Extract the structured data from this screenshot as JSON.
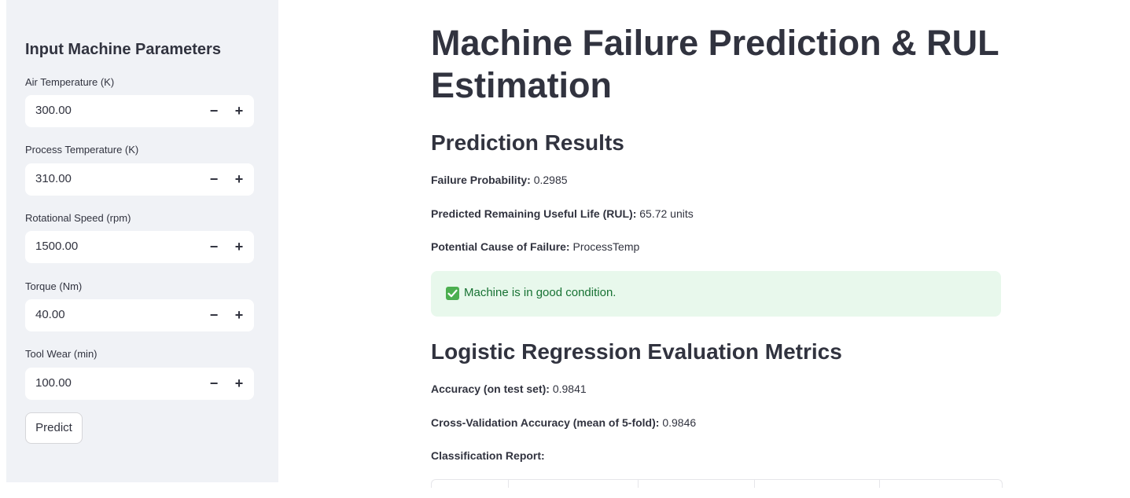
{
  "sidebar": {
    "header": "Input Machine Parameters",
    "fields": [
      {
        "label": "Air Temperature (K)",
        "value": "300.00"
      },
      {
        "label": "Process Temperature (K)",
        "value": "310.00"
      },
      {
        "label": "Rotational Speed (rpm)",
        "value": "1500.00"
      },
      {
        "label": "Torque (Nm)",
        "value": "40.00"
      },
      {
        "label": "Tool Wear (min)",
        "value": "100.00"
      }
    ],
    "minus_label": "−",
    "plus_label": "+",
    "predict_label": "Predict"
  },
  "main": {
    "title": "Machine Failure Prediction & RUL Estimation",
    "results": {
      "heading": "Prediction Results",
      "failure_probability": {
        "label": "Failure Probability:",
        "value": "0.2985"
      },
      "rul": {
        "label": "Predicted Remaining Useful Life (RUL):",
        "value": "65.72 units"
      },
      "cause": {
        "label": "Potential Cause of Failure:",
        "value": "ProcessTemp"
      },
      "status_message": "Machine is in good condition.",
      "status_icon": "check-box-icon"
    },
    "metrics": {
      "heading": "Logistic Regression Evaluation Metrics",
      "accuracy": {
        "label": "Accuracy (on test set):",
        "value": "0.9841"
      },
      "cv_accuracy": {
        "label": "Cross-Validation Accuracy (mean of 5-fold):",
        "value": "0.9846"
      },
      "report_label": "Classification Report:"
    }
  },
  "colors": {
    "sidebar_bg": "#f0f2f6",
    "text": "#31333f",
    "success_bg": "#e8f8ec",
    "success_text": "#177233",
    "check_green": "#4caf50"
  }
}
